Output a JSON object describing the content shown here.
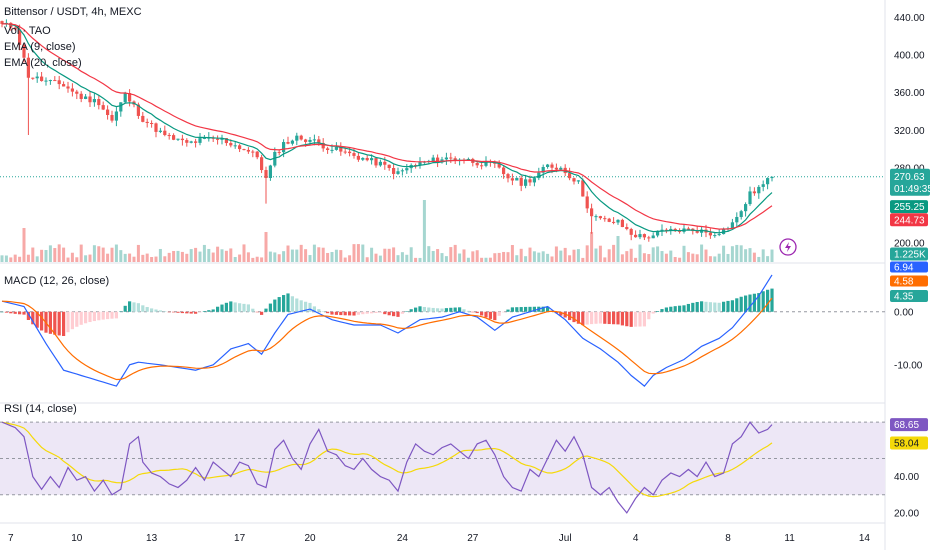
{
  "chart_data": {
    "type": "candlestick",
    "title": "Bittensor / USDT, 4h, MEXC",
    "indicator_labels": {
      "volume": "Vol · TAO",
      "ema_fast": "EMA (9, close)",
      "ema_slow": "EMA (20, close)",
      "macd": "MACD (12, 26, close)",
      "rsi": "RSI (14, close)"
    },
    "colors": {
      "up": "#26a69a",
      "down": "#ef5350",
      "vol_up": "#a5d6d0",
      "vol_down": "#f7a9a7",
      "ema_fast": "#089981",
      "ema_slow": "#f23645",
      "macd": "#2962ff",
      "signal": "#ff6d00",
      "hist_up": "#26a69a",
      "hist_up_light": "#b2dfdb",
      "hist_down": "#ef5350",
      "hist_down_light": "#ffcdd2",
      "rsi": "#7e57c2",
      "rsi_ma": "#f5d90a",
      "rsi_band": "#ede7f6"
    },
    "x_ticks": [
      "7",
      "10",
      "13",
      "17",
      "20",
      "24",
      "27",
      "Jul",
      "4",
      "8",
      "11",
      "14"
    ],
    "price_axis": {
      "ticks": [
        "440.00",
        "400.00",
        "360.00",
        "320.00",
        "280.00",
        "200.00"
      ],
      "ylim": [
        180,
        450
      ],
      "log_scale": false
    },
    "price_tags": {
      "last": "270.63",
      "countdown": "01:49:35",
      "ema_fast": "255.25",
      "ema_slow": "244.73",
      "volume": "1.225K"
    },
    "close_anchors": [
      [
        0,
        432
      ],
      [
        3,
        430
      ],
      [
        6,
        378
      ],
      [
        10,
        372
      ],
      [
        14,
        368
      ],
      [
        18,
        355
      ],
      [
        22,
        350
      ],
      [
        25,
        330
      ],
      [
        28,
        358
      ],
      [
        32,
        332
      ],
      [
        37,
        314
      ],
      [
        42,
        306
      ],
      [
        46,
        310
      ],
      [
        50,
        310
      ],
      [
        55,
        300
      ],
      [
        58,
        292
      ],
      [
        60,
        268
      ],
      [
        62,
        294
      ],
      [
        64,
        306
      ],
      [
        67,
        312
      ],
      [
        70,
        310
      ],
      [
        74,
        302
      ],
      [
        78,
        296
      ],
      [
        82,
        290
      ],
      [
        86,
        284
      ],
      [
        90,
        274
      ],
      [
        93,
        282
      ],
      [
        96,
        286
      ],
      [
        100,
        290
      ],
      [
        104,
        290
      ],
      [
        108,
        286
      ],
      [
        112,
        282
      ],
      [
        115,
        270
      ],
      [
        118,
        264
      ],
      [
        121,
        270
      ],
      [
        124,
        282
      ],
      [
        127,
        280
      ],
      [
        131,
        264
      ],
      [
        134,
        228
      ],
      [
        137,
        224
      ],
      [
        140,
        222
      ],
      [
        143,
        210
      ],
      [
        146,
        206
      ],
      [
        150,
        212
      ],
      [
        154,
        214
      ],
      [
        158,
        214
      ],
      [
        161,
        210
      ],
      [
        164,
        214
      ],
      [
        167,
        226
      ],
      [
        170,
        252
      ],
      [
        173,
        262
      ],
      [
        175,
        270.6
      ]
    ],
    "macd_axis": {
      "ticks": [
        "0.00",
        "-10.00"
      ],
      "ylim": [
        -17,
        9
      ],
      "tags": {
        "macd": "6.94",
        "signal": "4.58",
        "histogram": "4.35"
      }
    },
    "macd_anchors": [
      [
        0,
        2
      ],
      [
        5,
        1
      ],
      [
        10,
        -6
      ],
      [
        14,
        -11
      ],
      [
        18,
        -12
      ],
      [
        22,
        -13
      ],
      [
        26,
        -14
      ],
      [
        29,
        -10
      ],
      [
        31,
        -9.5
      ],
      [
        36,
        -10
      ],
      [
        40,
        -10.5
      ],
      [
        44,
        -11
      ],
      [
        48,
        -10
      ],
      [
        52,
        -7
      ],
      [
        56,
        -6
      ],
      [
        59,
        -8
      ],
      [
        62,
        -4
      ],
      [
        65,
        -0.5
      ],
      [
        70,
        0.5
      ],
      [
        75,
        -1.5
      ],
      [
        80,
        -2.5
      ],
      [
        86,
        -2.5
      ],
      [
        90,
        -4
      ],
      [
        95,
        -1.5
      ],
      [
        100,
        -1
      ],
      [
        104,
        0
      ],
      [
        108,
        -1
      ],
      [
        112,
        -3.5
      ],
      [
        116,
        -1
      ],
      [
        120,
        0
      ],
      [
        124,
        1
      ],
      [
        128,
        -1.5
      ],
      [
        132,
        -5
      ],
      [
        136,
        -7
      ],
      [
        140,
        -9.5
      ],
      [
        143,
        -12
      ],
      [
        146,
        -14
      ],
      [
        148,
        -12
      ],
      [
        151,
        -10.5
      ],
      [
        155,
        -9
      ],
      [
        159,
        -6.5
      ],
      [
        163,
        -5
      ],
      [
        166,
        -3
      ],
      [
        169,
        0
      ],
      [
        172,
        3
      ],
      [
        175,
        6.94
      ]
    ],
    "rsi_axis": {
      "ticks": [
        "40.00",
        "20.00"
      ],
      "ylim": [
        15,
        80
      ],
      "bands": [
        30,
        50,
        70
      ],
      "tags": {
        "rsi": "68.65",
        "rsi_ma": "58.04"
      }
    },
    "rsi_anchors": [
      [
        0,
        70
      ],
      [
        3,
        67
      ],
      [
        5,
        62
      ],
      [
        7,
        40
      ],
      [
        9,
        33
      ],
      [
        11,
        40
      ],
      [
        13,
        34
      ],
      [
        15,
        45
      ],
      [
        17,
        38
      ],
      [
        19,
        40
      ],
      [
        21,
        32
      ],
      [
        23,
        38
      ],
      [
        25,
        30
      ],
      [
        27,
        33
      ],
      [
        29,
        58
      ],
      [
        31,
        62
      ],
      [
        32,
        48
      ],
      [
        34,
        42
      ],
      [
        36,
        40
      ],
      [
        38,
        36
      ],
      [
        40,
        34
      ],
      [
        42,
        38
      ],
      [
        44,
        45
      ],
      [
        46,
        38
      ],
      [
        48,
        48
      ],
      [
        50,
        44
      ],
      [
        52,
        40
      ],
      [
        54,
        48
      ],
      [
        56,
        46
      ],
      [
        58,
        36
      ],
      [
        60,
        34
      ],
      [
        62,
        55
      ],
      [
        64,
        60
      ],
      [
        66,
        50
      ],
      [
        68,
        44
      ],
      [
        70,
        58
      ],
      [
        72,
        66
      ],
      [
        74,
        54
      ],
      [
        76,
        52
      ],
      [
        78,
        46
      ],
      [
        80,
        44
      ],
      [
        82,
        50
      ],
      [
        84,
        44
      ],
      [
        86,
        40
      ],
      [
        88,
        38
      ],
      [
        90,
        32
      ],
      [
        92,
        48
      ],
      [
        94,
        58
      ],
      [
        96,
        54
      ],
      [
        98,
        52
      ],
      [
        100,
        56
      ],
      [
        102,
        58
      ],
      [
        104,
        54
      ],
      [
        106,
        50
      ],
      [
        108,
        58
      ],
      [
        110,
        60
      ],
      [
        112,
        52
      ],
      [
        114,
        40
      ],
      [
        116,
        34
      ],
      [
        118,
        32
      ],
      [
        120,
        44
      ],
      [
        122,
        40
      ],
      [
        124,
        50
      ],
      [
        126,
        60
      ],
      [
        128,
        54
      ],
      [
        130,
        62
      ],
      [
        132,
        52
      ],
      [
        134,
        34
      ],
      [
        136,
        30
      ],
      [
        138,
        34
      ],
      [
        140,
        26
      ],
      [
        142,
        20
      ],
      [
        144,
        28
      ],
      [
        146,
        34
      ],
      [
        148,
        30
      ],
      [
        150,
        38
      ],
      [
        152,
        42
      ],
      [
        154,
        40
      ],
      [
        156,
        44
      ],
      [
        158,
        40
      ],
      [
        160,
        48
      ],
      [
        162,
        40
      ],
      [
        164,
        42
      ],
      [
        166,
        58
      ],
      [
        168,
        62
      ],
      [
        170,
        70
      ],
      [
        172,
        64
      ],
      [
        174,
        66
      ],
      [
        175,
        68.65
      ]
    ]
  }
}
